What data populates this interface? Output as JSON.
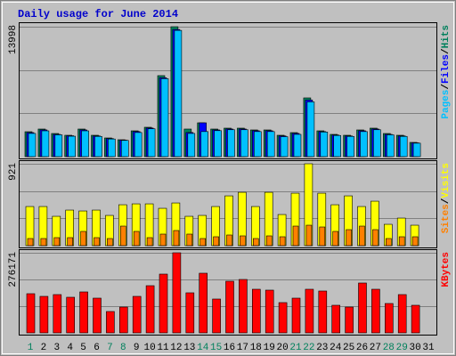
{
  "chart_data": [
    {
      "type": "bar",
      "title": "Daily usage for June 2014",
      "ylim": [
        0,
        13998
      ],
      "yticks": [
        13998
      ],
      "grid_values": [
        4666,
        9332
      ],
      "legend_separator": "/",
      "series": [
        {
          "name": "Hits",
          "color": "#00805c",
          "values": [
            2685,
            2973,
            2493,
            2302,
            2973,
            2302,
            2014,
            1822,
            2781,
            3165,
            8727,
            13998,
            2973,
            3644,
            2973,
            3069,
            3069,
            2877,
            2877,
            2302,
            2589,
            6329,
            2781,
            2398,
            2302,
            2877,
            3069,
            2493,
            2302,
            1535,
            null
          ]
        },
        {
          "name": "Files",
          "color": "#0000ff",
          "values": [
            2590,
            2880,
            2400,
            2250,
            2880,
            2230,
            1950,
            1780,
            2700,
            3080,
            8500,
            13700,
            2600,
            3644,
            2880,
            2980,
            2980,
            2790,
            2790,
            2230,
            2500,
            6100,
            2700,
            2330,
            2230,
            2790,
            2980,
            2400,
            2230,
            1490,
            null
          ]
        },
        {
          "name": "Pages",
          "color": "#00c0ff",
          "values": [
            2500,
            2780,
            2350,
            2200,
            2780,
            2180,
            1900,
            1750,
            2600,
            3000,
            8400,
            13600,
            2500,
            2700,
            2800,
            2900,
            2900,
            2700,
            2700,
            2150,
            2400,
            5900,
            2650,
            2280,
            2180,
            2700,
            2900,
            2350,
            2180,
            1450,
            null
          ]
        }
      ]
    },
    {
      "type": "bar",
      "ylim": [
        0,
        921
      ],
      "yticks": [
        921
      ],
      "grid_values": [
        307,
        614
      ],
      "legend_separator": "/",
      "series": [
        {
          "name": "Visits",
          "color": "#ffff00",
          "values": [
            440,
            440,
            330,
            400,
            390,
            400,
            340,
            460,
            470,
            470,
            420,
            480,
            330,
            340,
            440,
            560,
            600,
            440,
            600,
            350,
            590,
            921,
            590,
            460,
            560,
            440,
            500,
            240,
            310,
            230,
            null
          ]
        },
        {
          "name": "Sites",
          "color": "#ff8000",
          "values": [
            80,
            80,
            90,
            90,
            160,
            90,
            80,
            220,
            160,
            90,
            130,
            170,
            130,
            80,
            100,
            120,
            110,
            80,
            110,
            100,
            220,
            230,
            210,
            160,
            180,
            220,
            180,
            80,
            100,
            100,
            null
          ]
        }
      ]
    },
    {
      "type": "bar",
      "ylim": [
        0,
        276171
      ],
      "yticks": [
        276171
      ],
      "grid_values": [
        92057,
        184114
      ],
      "categories": [
        "1",
        "2",
        "3",
        "4",
        "5",
        "6",
        "7",
        "8",
        "9",
        "10",
        "11",
        "12",
        "13",
        "14",
        "15",
        "16",
        "17",
        "18",
        "19",
        "20",
        "21",
        "22",
        "23",
        "24",
        "25",
        "26",
        "27",
        "28",
        "29",
        "30",
        "31"
      ],
      "label_colors": [
        "#00805c",
        "#000000",
        "#000000",
        "#000000",
        "#000000",
        "#000000",
        "#00805c",
        "#00805c",
        "#000000",
        "#000000",
        "#000000",
        "#000000",
        "#000000",
        "#00805c",
        "#00805c",
        "#000000",
        "#000000",
        "#000000",
        "#000000",
        "#000000",
        "#00805c",
        "#00805c",
        "#000000",
        "#000000",
        "#000000",
        "#000000",
        "#000000",
        "#00805c",
        "#00805c",
        "#000000",
        "#000000"
      ],
      "series": [
        {
          "name": "KBytes",
          "color": "#ff0000",
          "values": [
            135036,
            125829,
            131967,
            122760,
            141174,
            119691,
            73656,
            89001,
            125829,
            162657,
            202554,
            276171,
            138105,
            205623,
            116622,
            178002,
            184140,
            150381,
            147312,
            104346,
            119691,
            150381,
            144243,
            95139,
            89001,
            171864,
            150381,
            101277,
            131967,
            95139,
            null
          ]
        }
      ]
    }
  ]
}
